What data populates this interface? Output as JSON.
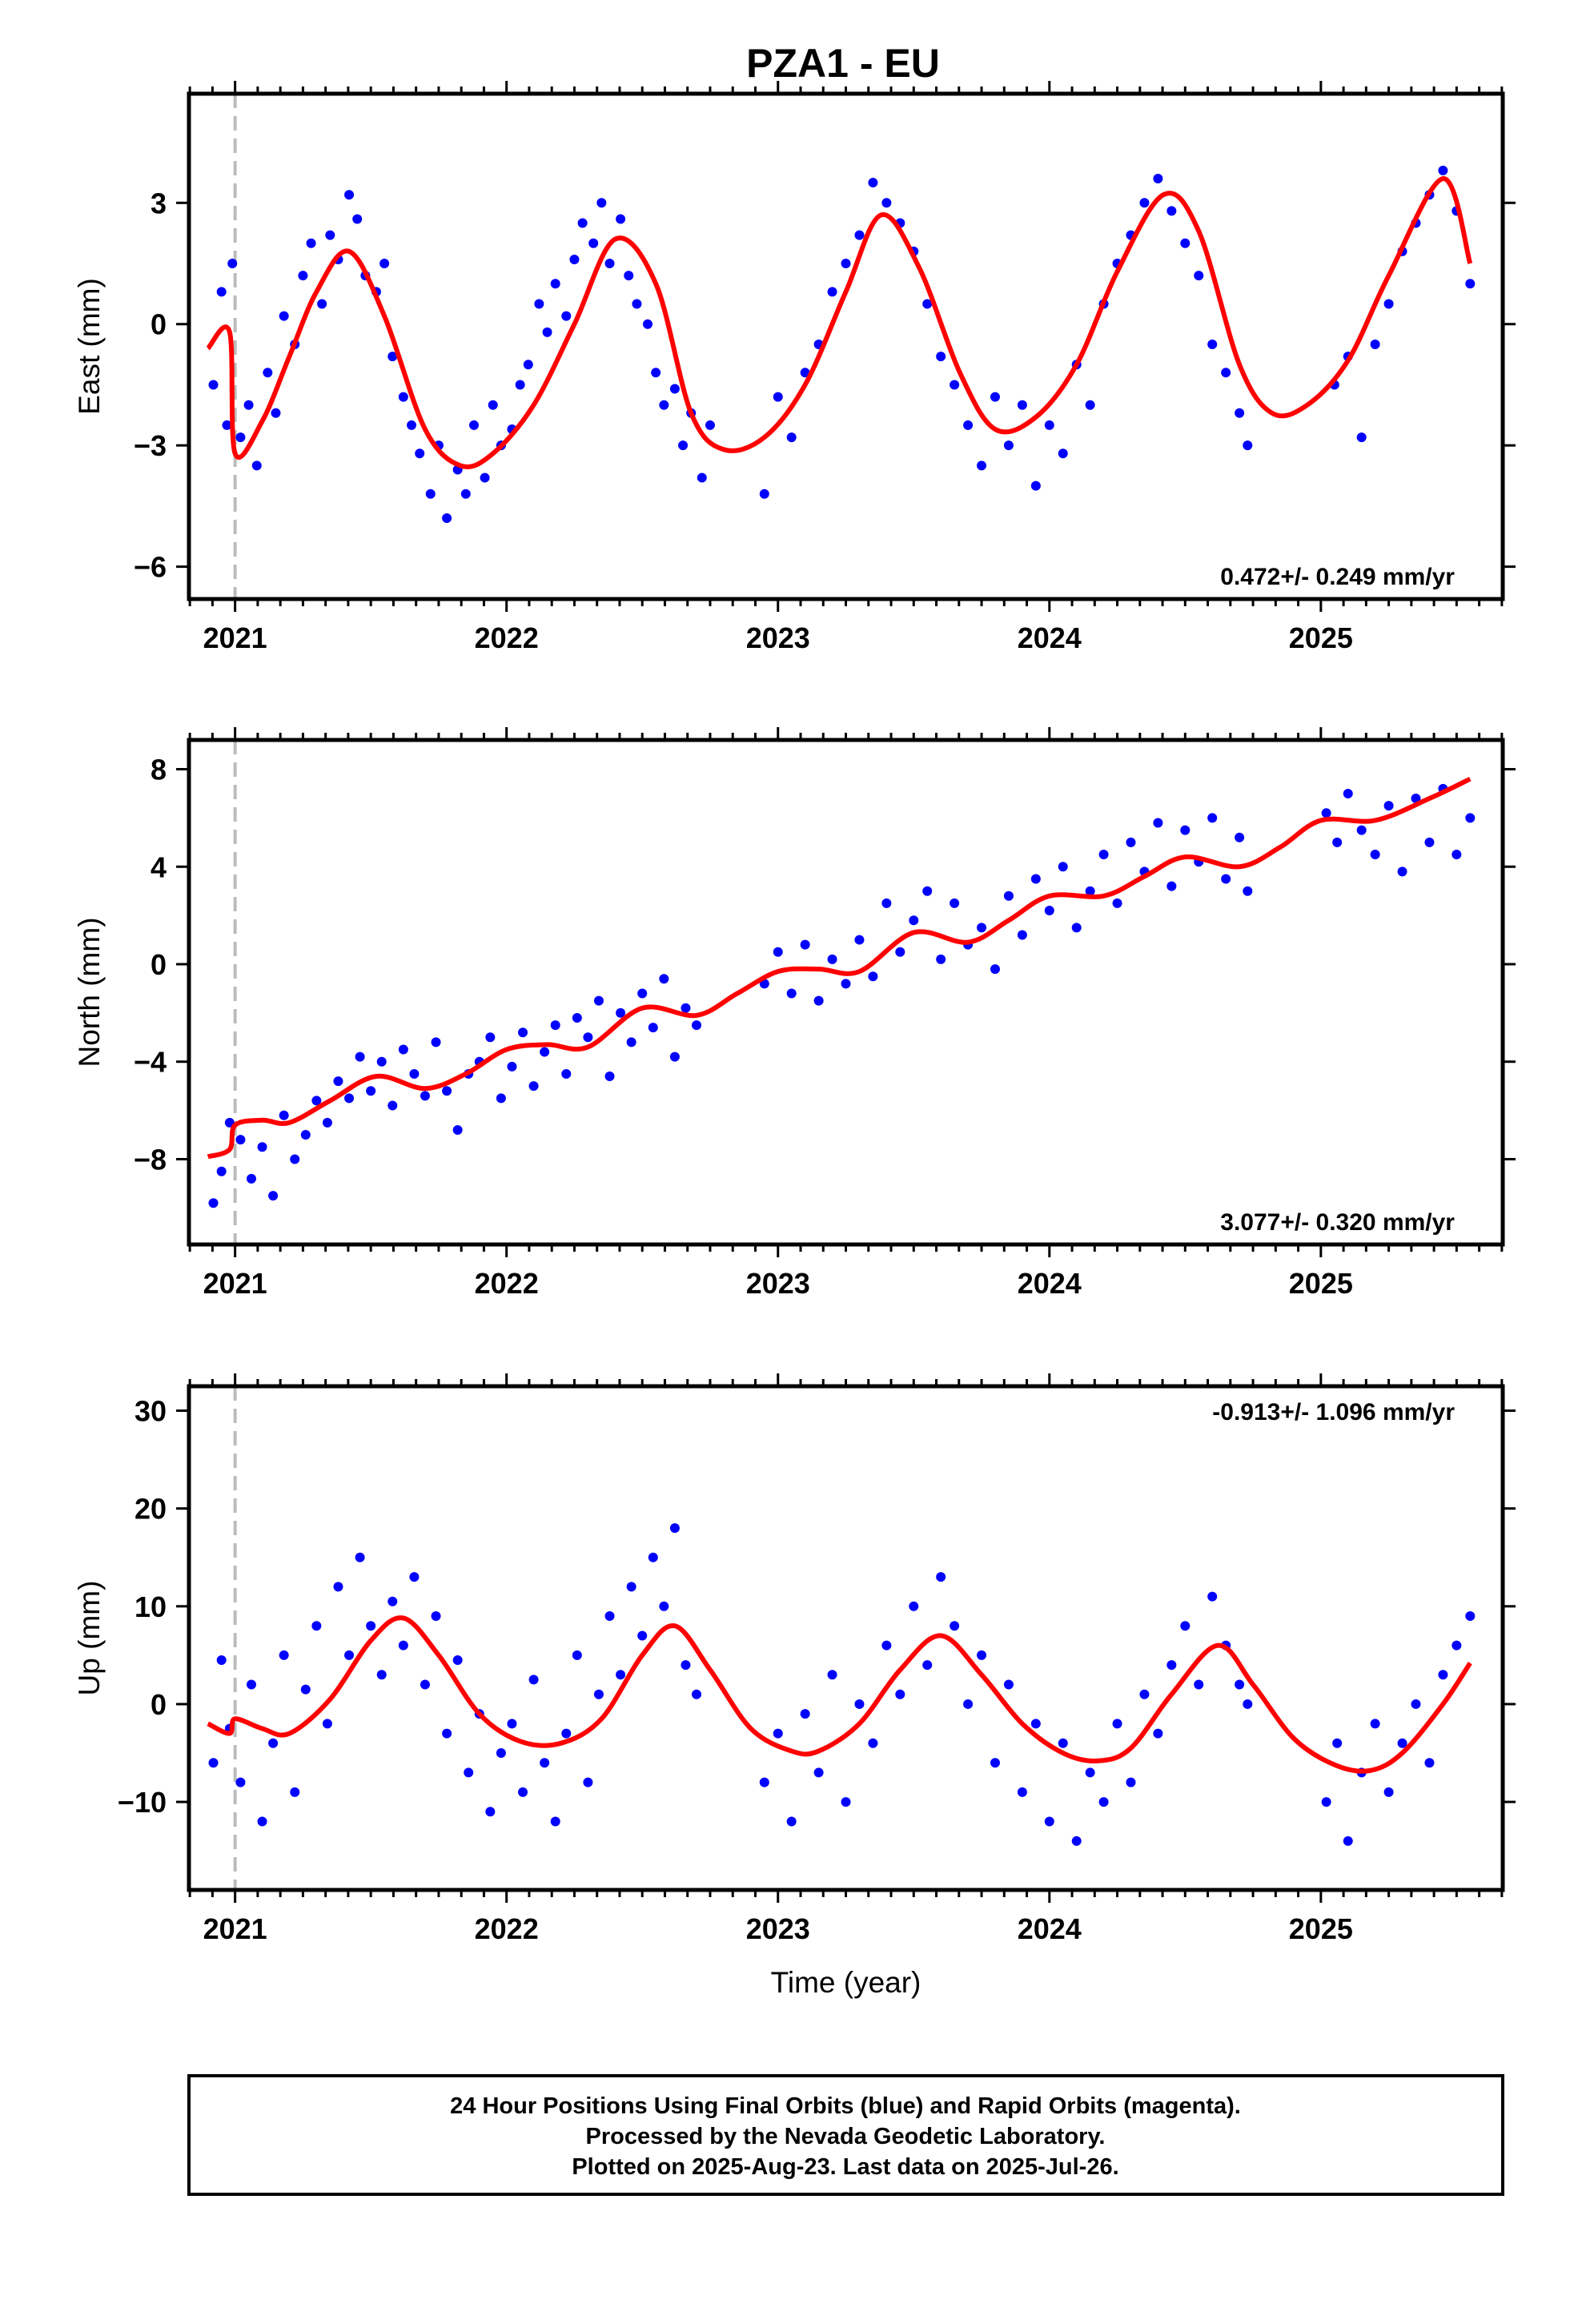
{
  "title": "PZA1 - EU",
  "colors": {
    "points": "#0000ff",
    "model": "#ff0000",
    "marker": "#bbbbbb",
    "frame": "#000000"
  },
  "footer": {
    "line1": "24 Hour Positions Using Final Orbits (blue) and Rapid Orbits (magenta).",
    "line2": "Processed by the Nevada Geodetic Laboratory.",
    "line3": "Plotted on 2025-Aug-23. Last data on 2025-Jul-26."
  },
  "chart_data": [
    {
      "type": "scatter",
      "component": "east",
      "ylabel": "East (mm)",
      "xlabel": "",
      "xlim": [
        2020.83,
        2025.67
      ],
      "ylim": [
        -6.8,
        5.7
      ],
      "xticks": [
        2021,
        2022,
        2023,
        2024,
        2025
      ],
      "yticks": [
        -6,
        -3,
        0,
        3
      ],
      "ytick_labels": [
        "−6",
        "−3",
        "0",
        "3"
      ],
      "rate_label": "0.472+/- 0.249 mm/yr",
      "rate_position": "bottom-right",
      "marker_x": 2021.0,
      "model": {
        "x": [
          2020.9,
          2020.98,
          2021.0,
          2021.1,
          2021.2,
          2021.3,
          2021.42,
          2021.55,
          2021.7,
          2021.83,
          2021.95,
          2022.1,
          2022.25,
          2022.4,
          2022.55,
          2022.68,
          2022.8,
          2022.95,
          2023.1,
          2023.25,
          2023.38,
          2023.52,
          2023.67,
          2023.8,
          2023.95,
          2024.1,
          2024.25,
          2024.42,
          2024.55,
          2024.7,
          2024.82,
          2024.95,
          2025.1,
          2025.25,
          2025.45,
          2025.55
        ],
        "y": [
          -0.6,
          -0.2,
          -3.2,
          -2.4,
          -0.8,
          0.8,
          1.8,
          0.2,
          -2.6,
          -3.5,
          -3.2,
          -2.0,
          0.0,
          2.1,
          1.0,
          -2.2,
          -3.1,
          -2.8,
          -1.5,
          0.8,
          2.7,
          1.4,
          -1.2,
          -2.6,
          -2.3,
          -1.0,
          1.3,
          3.2,
          2.3,
          -1.0,
          -2.2,
          -2.0,
          -0.9,
          1.2,
          3.6,
          1.5
        ]
      },
      "points": {
        "x": [
          2020.92,
          2020.95,
          2020.97,
          2020.99,
          2021.02,
          2021.05,
          2021.08,
          2021.12,
          2021.15,
          2021.18,
          2021.22,
          2021.25,
          2021.28,
          2021.32,
          2021.35,
          2021.38,
          2021.42,
          2021.45,
          2021.48,
          2021.52,
          2021.55,
          2021.58,
          2021.62,
          2021.65,
          2021.68,
          2021.72,
          2021.75,
          2021.78,
          2021.82,
          2021.85,
          2021.88,
          2021.92,
          2021.95,
          2021.98,
          2022.02,
          2022.05,
          2022.08,
          2022.12,
          2022.15,
          2022.18,
          2022.22,
          2022.25,
          2022.28,
          2022.32,
          2022.35,
          2022.38,
          2022.42,
          2022.45,
          2022.48,
          2022.52,
          2022.55,
          2022.58,
          2022.62,
          2022.65,
          2022.68,
          2022.72,
          2022.75,
          2022.95,
          2023.0,
          2023.05,
          2023.1,
          2023.15,
          2023.2,
          2023.25,
          2023.3,
          2023.35,
          2023.4,
          2023.45,
          2023.5,
          2023.55,
          2023.6,
          2023.65,
          2023.7,
          2023.75,
          2023.8,
          2023.85,
          2023.9,
          2023.95,
          2024.0,
          2024.05,
          2024.1,
          2024.15,
          2024.2,
          2024.25,
          2024.3,
          2024.35,
          2024.4,
          2024.45,
          2024.5,
          2024.55,
          2024.6,
          2024.65,
          2024.7,
          2024.73,
          2025.05,
          2025.1,
          2025.15,
          2025.2,
          2025.25,
          2025.3,
          2025.35,
          2025.4,
          2025.45,
          2025.5,
          2025.55
        ],
        "y": [
          -1.5,
          0.8,
          -2.5,
          1.5,
          -2.8,
          -2.0,
          -3.5,
          -1.2,
          -2.2,
          0.2,
          -0.5,
          1.2,
          2.0,
          0.5,
          2.2,
          1.6,
          3.2,
          2.6,
          1.2,
          0.8,
          1.5,
          -0.8,
          -1.8,
          -2.5,
          -3.2,
          -4.2,
          -3.0,
          -4.8,
          -3.6,
          -4.2,
          -2.5,
          -3.8,
          -2.0,
          -3.0,
          -2.6,
          -1.5,
          -1.0,
          0.5,
          -0.2,
          1.0,
          0.2,
          1.6,
          2.5,
          2.0,
          3.0,
          1.5,
          2.6,
          1.2,
          0.5,
          0.0,
          -1.2,
          -2.0,
          -1.6,
          -3.0,
          -2.2,
          -3.8,
          -2.5,
          -4.2,
          -1.8,
          -2.8,
          -1.2,
          -0.5,
          0.8,
          1.5,
          2.2,
          3.5,
          3.0,
          2.5,
          1.8,
          0.5,
          -0.8,
          -1.5,
          -2.5,
          -3.5,
          -1.8,
          -3.0,
          -2.0,
          -4.0,
          -2.5,
          -3.2,
          -1.0,
          -2.0,
          0.5,
          1.5,
          2.2,
          3.0,
          3.6,
          2.8,
          2.0,
          1.2,
          -0.5,
          -1.2,
          -2.2,
          -3.0,
          -1.5,
          -0.8,
          -2.8,
          -0.5,
          0.5,
          1.8,
          2.5,
          3.2,
          3.8,
          2.8,
          1.0
        ]
      }
    },
    {
      "type": "scatter",
      "component": "north",
      "ylabel": "North (mm)",
      "xlabel": "",
      "xlim": [
        2020.83,
        2025.67
      ],
      "ylim": [
        -11.5,
        9.2
      ],
      "xticks": [
        2021,
        2022,
        2023,
        2024,
        2025
      ],
      "yticks": [
        -8,
        -4,
        0,
        4,
        8
      ],
      "ytick_labels": [
        "−8",
        "−4",
        "0",
        "4",
        "8"
      ],
      "rate_label": "3.077+/- 0.320 mm/yr",
      "rate_position": "bottom-right",
      "marker_x": 2021.0,
      "model": {
        "x": [
          2020.9,
          2020.98,
          2021.0,
          2021.1,
          2021.2,
          2021.35,
          2021.52,
          2021.7,
          2021.85,
          2022.0,
          2022.15,
          2022.3,
          2022.5,
          2022.7,
          2022.85,
          2023.0,
          2023.15,
          2023.3,
          2023.5,
          2023.7,
          2023.85,
          2024.0,
          2024.2,
          2024.35,
          2024.5,
          2024.7,
          2024.85,
          2025.0,
          2025.2,
          2025.4,
          2025.55
        ],
        "y": [
          -7.9,
          -7.6,
          -6.6,
          -6.4,
          -6.5,
          -5.6,
          -4.6,
          -5.1,
          -4.5,
          -3.5,
          -3.3,
          -3.4,
          -1.8,
          -2.1,
          -1.2,
          -0.3,
          -0.2,
          -0.3,
          1.3,
          0.9,
          1.8,
          2.8,
          2.8,
          3.6,
          4.4,
          4.0,
          4.8,
          5.9,
          5.9,
          6.8,
          7.6
        ]
      },
      "points": {
        "x": [
          2020.92,
          2020.95,
          2020.98,
          2021.02,
          2021.06,
          2021.1,
          2021.14,
          2021.18,
          2021.22,
          2021.26,
          2021.3,
          2021.34,
          2021.38,
          2021.42,
          2021.46,
          2021.5,
          2021.54,
          2021.58,
          2021.62,
          2021.66,
          2021.7,
          2021.74,
          2021.78,
          2021.82,
          2021.86,
          2021.9,
          2021.94,
          2021.98,
          2022.02,
          2022.06,
          2022.1,
          2022.14,
          2022.18,
          2022.22,
          2022.26,
          2022.3,
          2022.34,
          2022.38,
          2022.42,
          2022.46,
          2022.5,
          2022.54,
          2022.58,
          2022.62,
          2022.66,
          2022.7,
          2022.95,
          2023.0,
          2023.05,
          2023.1,
          2023.15,
          2023.2,
          2023.25,
          2023.3,
          2023.35,
          2023.4,
          2023.45,
          2023.5,
          2023.55,
          2023.6,
          2023.65,
          2023.7,
          2023.75,
          2023.8,
          2023.85,
          2023.9,
          2023.95,
          2024.0,
          2024.05,
          2024.1,
          2024.15,
          2024.2,
          2024.25,
          2024.3,
          2024.35,
          2024.4,
          2024.45,
          2024.5,
          2024.55,
          2024.6,
          2024.65,
          2024.7,
          2024.73,
          2025.02,
          2025.06,
          2025.1,
          2025.15,
          2025.2,
          2025.25,
          2025.3,
          2025.35,
          2025.4,
          2025.45,
          2025.5,
          2025.55
        ],
        "y": [
          -9.8,
          -8.5,
          -6.5,
          -7.2,
          -8.8,
          -7.5,
          -9.5,
          -6.2,
          -8.0,
          -7.0,
          -5.6,
          -6.5,
          -4.8,
          -5.5,
          -3.8,
          -5.2,
          -4.0,
          -5.8,
          -3.5,
          -4.5,
          -5.4,
          -3.2,
          -5.2,
          -6.8,
          -4.5,
          -4.0,
          -3.0,
          -5.5,
          -4.2,
          -2.8,
          -5.0,
          -3.6,
          -2.5,
          -4.5,
          -2.2,
          -3.0,
          -1.5,
          -4.6,
          -2.0,
          -3.2,
          -1.2,
          -2.6,
          -0.6,
          -3.8,
          -1.8,
          -2.5,
          -0.8,
          0.5,
          -1.2,
          0.8,
          -1.5,
          0.2,
          -0.8,
          1.0,
          -0.5,
          2.5,
          0.5,
          1.8,
          3.0,
          0.2,
          2.5,
          0.8,
          1.5,
          -0.2,
          2.8,
          1.2,
          3.5,
          2.2,
          4.0,
          1.5,
          3.0,
          4.5,
          2.5,
          5.0,
          3.8,
          5.8,
          3.2,
          5.5,
          4.2,
          6.0,
          3.5,
          5.2,
          3.0,
          6.2,
          5.0,
          7.0,
          5.5,
          4.5,
          6.5,
          3.8,
          6.8,
          5.0,
          7.2,
          4.5,
          6.0
        ]
      }
    },
    {
      "type": "scatter",
      "component": "up",
      "ylabel": "Up (mm)",
      "xlabel": "Time (year)",
      "xlim": [
        2020.83,
        2025.67
      ],
      "ylim": [
        -19,
        32.5
      ],
      "xticks": [
        2021,
        2022,
        2023,
        2024,
        2025
      ],
      "yticks": [
        -10,
        0,
        10,
        20,
        30
      ],
      "ytick_labels": [
        "−10",
        "0",
        "10",
        "20",
        "30"
      ],
      "rate_label": "-0.913+/- 1.096 mm/yr",
      "rate_position": "top-right",
      "marker_x": 2021.0,
      "model": {
        "x": [
          2020.9,
          2020.98,
          2021.0,
          2021.1,
          2021.2,
          2021.35,
          2021.5,
          2021.62,
          2021.75,
          2021.9,
          2022.05,
          2022.2,
          2022.35,
          2022.5,
          2022.62,
          2022.75,
          2022.9,
          2023.05,
          2023.15,
          2023.3,
          2023.45,
          2023.6,
          2023.75,
          2023.9,
          2024.05,
          2024.18,
          2024.3,
          2024.45,
          2024.62,
          2024.75,
          2024.9,
          2025.05,
          2025.18,
          2025.3,
          2025.45,
          2025.55
        ],
        "y": [
          -2.0,
          -3.0,
          -1.5,
          -2.5,
          -3.0,
          0.5,
          6.5,
          8.8,
          5.0,
          -1.0,
          -3.8,
          -4.0,
          -1.5,
          5.0,
          8.0,
          3.5,
          -2.5,
          -4.8,
          -4.8,
          -2.0,
          3.5,
          7.0,
          3.0,
          -2.0,
          -5.0,
          -5.8,
          -4.5,
          1.0,
          6.0,
          2.0,
          -3.5,
          -6.2,
          -6.8,
          -5.0,
          0.0,
          4.2
        ]
      },
      "points": {
        "x": [
          2020.92,
          2020.95,
          2020.98,
          2021.02,
          2021.06,
          2021.1,
          2021.14,
          2021.18,
          2021.22,
          2021.26,
          2021.3,
          2021.34,
          2021.38,
          2021.42,
          2021.46,
          2021.5,
          2021.54,
          2021.58,
          2021.62,
          2021.66,
          2021.7,
          2021.74,
          2021.78,
          2021.82,
          2021.86,
          2021.9,
          2021.94,
          2021.98,
          2022.02,
          2022.06,
          2022.1,
          2022.14,
          2022.18,
          2022.22,
          2022.26,
          2022.3,
          2022.34,
          2022.38,
          2022.42,
          2022.46,
          2022.5,
          2022.54,
          2022.58,
          2022.62,
          2022.66,
          2022.7,
          2022.95,
          2023.0,
          2023.05,
          2023.1,
          2023.15,
          2023.2,
          2023.25,
          2023.3,
          2023.35,
          2023.4,
          2023.45,
          2023.5,
          2023.55,
          2023.6,
          2023.65,
          2023.7,
          2023.75,
          2023.8,
          2023.85,
          2023.9,
          2023.95,
          2024.0,
          2024.05,
          2024.1,
          2024.15,
          2024.2,
          2024.25,
          2024.3,
          2024.35,
          2024.4,
          2024.45,
          2024.5,
          2024.55,
          2024.6,
          2024.65,
          2024.7,
          2024.73,
          2025.02,
          2025.06,
          2025.1,
          2025.15,
          2025.2,
          2025.25,
          2025.3,
          2025.35,
          2025.4,
          2025.45,
          2025.5,
          2025.55
        ],
        "y": [
          -6.0,
          4.5,
          -2.5,
          -8.0,
          2.0,
          -12.0,
          -4.0,
          5.0,
          -9.0,
          1.5,
          8.0,
          -2.0,
          12.0,
          5.0,
          15.0,
          8.0,
          3.0,
          10.5,
          6.0,
          13.0,
          2.0,
          9.0,
          -3.0,
          4.5,
          -7.0,
          -1.0,
          -11.0,
          -5.0,
          -2.0,
          -9.0,
          2.5,
          -6.0,
          -12.0,
          -3.0,
          5.0,
          -8.0,
          1.0,
          9.0,
          3.0,
          12.0,
          7.0,
          15.0,
          10.0,
          18.0,
          4.0,
          1.0,
          -8.0,
          -3.0,
          -12.0,
          -1.0,
          -7.0,
          3.0,
          -10.0,
          0.0,
          -4.0,
          6.0,
          1.0,
          10.0,
          4.0,
          13.0,
          8.0,
          0.0,
          5.0,
          -6.0,
          2.0,
          -9.0,
          -2.0,
          -12.0,
          -4.0,
          -14.0,
          -7.0,
          -10.0,
          -2.0,
          -8.0,
          1.0,
          -3.0,
          4.0,
          8.0,
          2.0,
          11.0,
          6.0,
          2.0,
          0.0,
          -10.0,
          -4.0,
          -14.0,
          -7.0,
          -2.0,
          -9.0,
          -4.0,
          0.0,
          -6.0,
          3.0,
          6.0,
          9.0
        ]
      }
    }
  ]
}
